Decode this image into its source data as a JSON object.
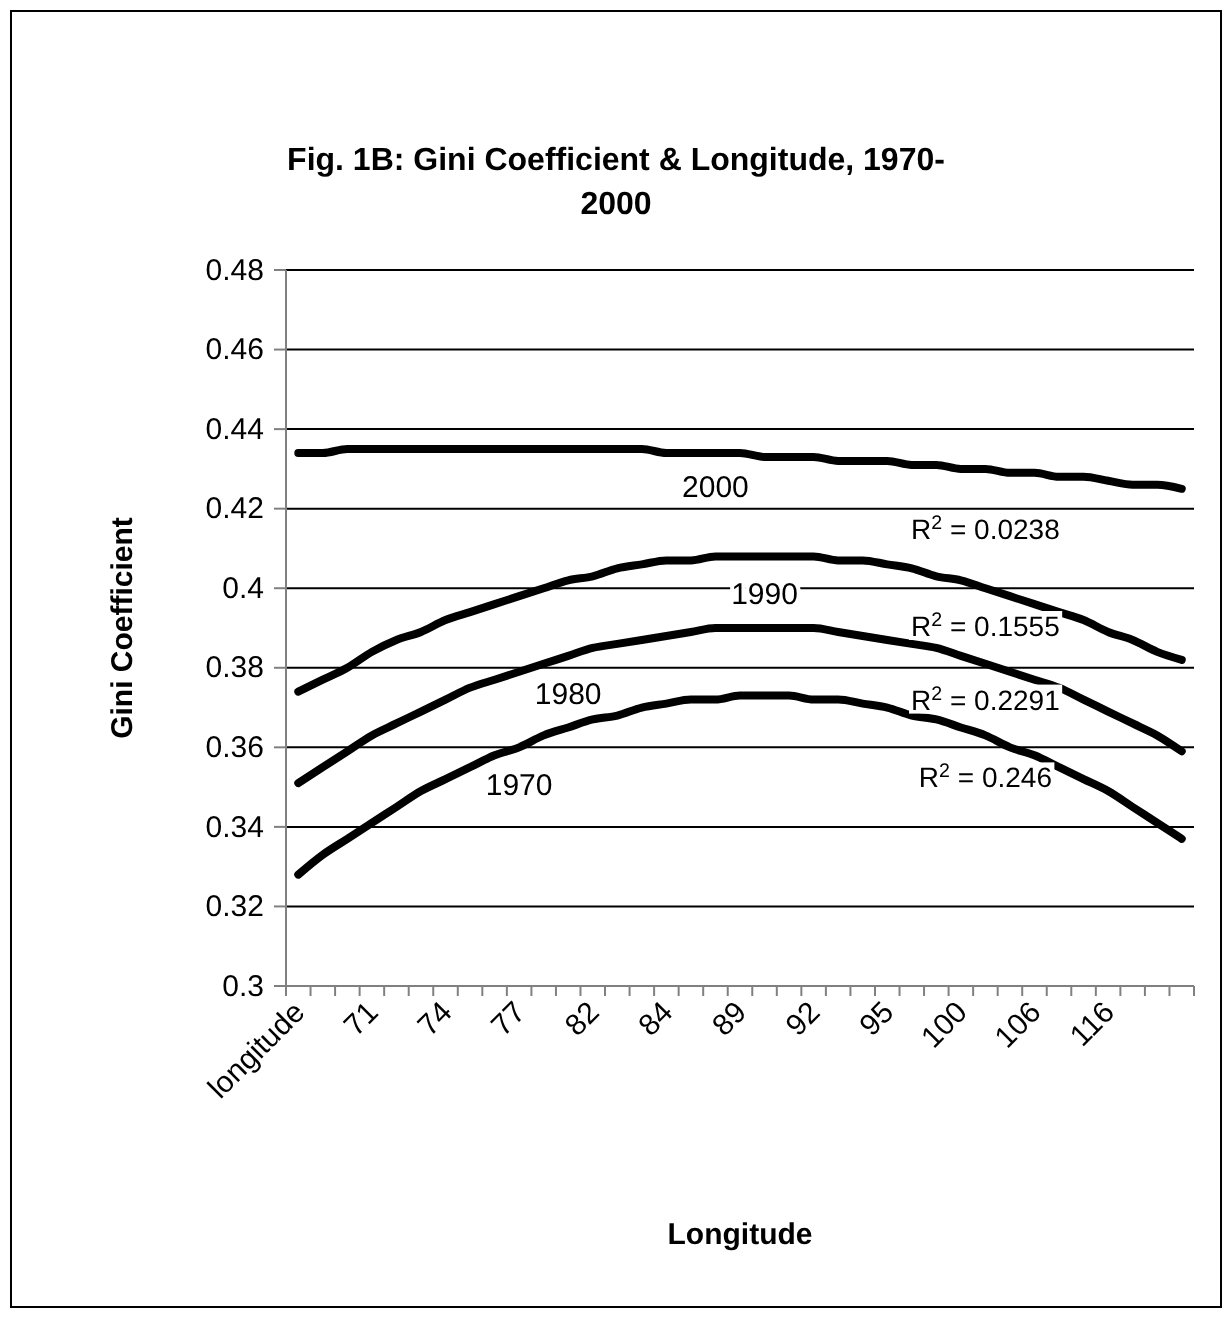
{
  "chart_data": {
    "type": "line",
    "title": "Fig. 1B: Gini Coefficient & Longitude, 1970-2000",
    "xlabel": "Longitude",
    "ylabel": "Gini Coefficient",
    "categories": [
      "longitude",
      null,
      null,
      "71",
      null,
      null,
      "74",
      null,
      null,
      "77",
      null,
      null,
      "82",
      null,
      null,
      "84",
      null,
      null,
      "89",
      null,
      null,
      "92",
      null,
      null,
      "95",
      null,
      null,
      "100",
      null,
      null,
      "106",
      null,
      null,
      "116",
      null,
      null,
      null
    ],
    "series": [
      {
        "name": "1970",
        "color": "#000000",
        "values": [
          0.328,
          0.333,
          0.337,
          0.341,
          0.345,
          0.349,
          0.352,
          0.355,
          0.358,
          0.36,
          0.363,
          0.365,
          0.367,
          0.368,
          0.37,
          0.371,
          0.372,
          0.372,
          0.373,
          0.373,
          0.373,
          0.372,
          0.372,
          0.371,
          0.37,
          0.368,
          0.367,
          0.365,
          0.363,
          0.36,
          0.358,
          0.355,
          0.352,
          0.349,
          0.345,
          0.341,
          0.337
        ]
      },
      {
        "name": "1980",
        "color": "#000000",
        "values": [
          0.351,
          0.355,
          0.359,
          0.363,
          0.366,
          0.369,
          0.372,
          0.375,
          0.377,
          0.379,
          0.381,
          0.383,
          0.385,
          0.386,
          0.387,
          0.388,
          0.389,
          0.39,
          0.39,
          0.39,
          0.39,
          0.39,
          0.389,
          0.388,
          0.387,
          0.386,
          0.385,
          0.383,
          0.381,
          0.379,
          0.377,
          0.375,
          0.372,
          0.369,
          0.366,
          0.363,
          0.359
        ]
      },
      {
        "name": "1990",
        "color": "#000000",
        "values": [
          0.374,
          0.377,
          0.38,
          0.384,
          0.387,
          0.389,
          0.392,
          0.394,
          0.396,
          0.398,
          0.4,
          0.402,
          0.403,
          0.405,
          0.406,
          0.407,
          0.407,
          0.408,
          0.408,
          0.408,
          0.408,
          0.408,
          0.407,
          0.407,
          0.406,
          0.405,
          0.403,
          0.402,
          0.4,
          0.398,
          0.396,
          0.394,
          0.392,
          0.389,
          0.387,
          0.384,
          0.382
        ]
      },
      {
        "name": "2000",
        "color": "#000000",
        "values": [
          0.434,
          0.434,
          0.435,
          0.435,
          0.435,
          0.435,
          0.435,
          0.435,
          0.435,
          0.435,
          0.435,
          0.435,
          0.435,
          0.435,
          0.435,
          0.434,
          0.434,
          0.434,
          0.434,
          0.433,
          0.433,
          0.433,
          0.432,
          0.432,
          0.432,
          0.431,
          0.431,
          0.43,
          0.43,
          0.429,
          0.429,
          0.428,
          0.428,
          0.427,
          0.426,
          0.426,
          0.425
        ]
      }
    ],
    "annotations": [
      "R$^{2}$ = 0.0238",
      "R$^{2}$ = 0.1555",
      "R$^{2}$ = 0.2291",
      "R$^{2}$ = 0.246"
    ],
    "ylim": [
      0.3,
      0.48
    ],
    "yticks": [
      0.3,
      0.32,
      0.34,
      0.36,
      0.38,
      0.4,
      0.42,
      0.44,
      0.46,
      0.48
    ],
    "grid": "y",
    "legend": false,
    "marker": "none",
    "line_style": "solid"
  }
}
